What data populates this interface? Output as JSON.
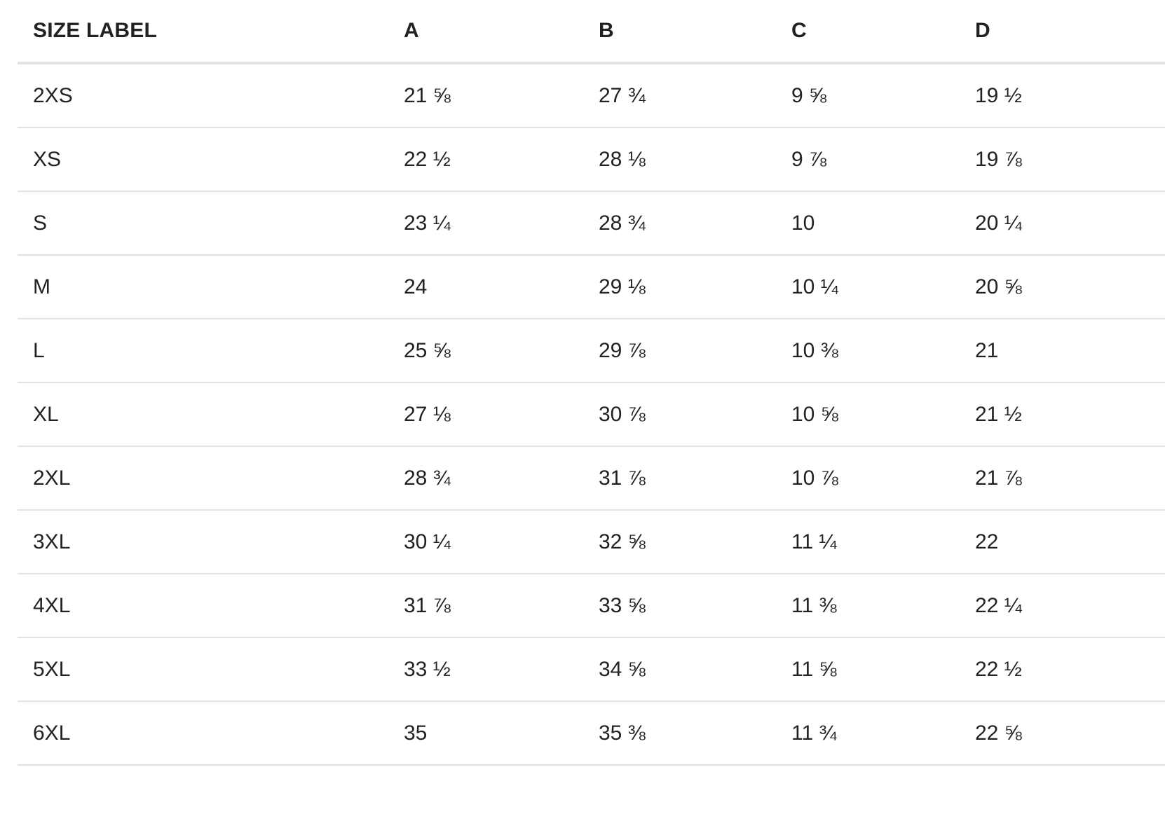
{
  "table": {
    "headers": [
      "SIZE LABEL",
      "A",
      "B",
      "C",
      "D"
    ],
    "rows": [
      [
        "2XS",
        "21 ⅝",
        "27 ¾",
        "9 ⅝",
        "19 ½"
      ],
      [
        "XS",
        "22 ½",
        "28 ⅛",
        "9 ⅞",
        "19 ⅞"
      ],
      [
        "S",
        "23 ¼",
        "28 ¾",
        "10",
        "20 ¼"
      ],
      [
        "M",
        "24",
        "29 ⅛",
        "10 ¼",
        "20 ⅝"
      ],
      [
        "L",
        "25 ⅝",
        "29 ⅞",
        "10 ⅜",
        "21"
      ],
      [
        "XL",
        "27 ⅛",
        "30 ⅞",
        "10 ⅝",
        "21 ½"
      ],
      [
        "2XL",
        "28 ¾",
        "31 ⅞",
        "10 ⅞",
        "21 ⅞"
      ],
      [
        "3XL",
        "30 ¼",
        "32 ⅝",
        "11 ¼",
        "22"
      ],
      [
        "4XL",
        "31 ⅞",
        "33 ⅝",
        "11 ⅜",
        "22 ¼"
      ],
      [
        "5XL",
        "33 ½",
        "34 ⅝",
        "11 ⅝",
        "22 ½"
      ],
      [
        "6XL",
        "35",
        "35 ⅜",
        "11 ¾",
        "22 ⅝"
      ]
    ]
  },
  "colors": {
    "text": "#222222",
    "divider": "#e3e3e3",
    "background": "#ffffff"
  }
}
